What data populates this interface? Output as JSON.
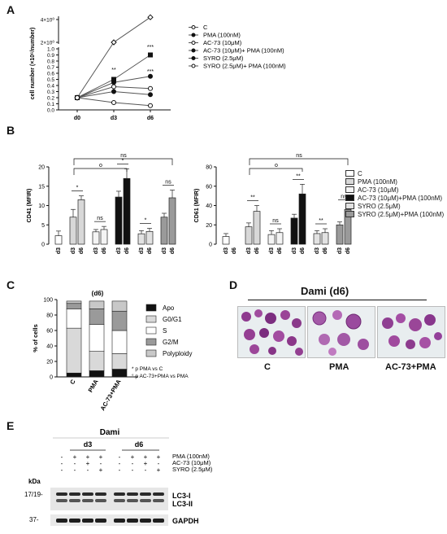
{
  "panels": {
    "A": {
      "letter": "A"
    },
    "B": {
      "letter": "B"
    },
    "C": {
      "letter": "C"
    },
    "D": {
      "letter": "D",
      "title": "Dami (d6)",
      "labels": [
        "C",
        "PMA",
        "AC-73+PMA"
      ]
    },
    "E": {
      "letter": "E"
    }
  },
  "chart_data": [
    {
      "id": "A",
      "type": "line",
      "xlabel": "",
      "ylabel": "cell number (×10⁶/number)",
      "categories": [
        "d0",
        "d3",
        "d6"
      ],
      "yticks": [
        "0.0",
        "0.1",
        "0.2",
        "0.3",
        "0.4",
        "0.5",
        "0.6",
        "0.7",
        "0.8",
        "0.9",
        "1.0",
        "2×10⁰",
        "4×10⁰"
      ],
      "legend": [
        "C",
        "PMA (100nM)",
        "AC-73 (10μM)",
        "AC-73 (10μM)+ PMA (100nM)",
        "SYRO (2.5μM)",
        "SYRO (2.5μM)+ PMA (100nM)"
      ],
      "series": [
        {
          "name": "C",
          "values": [
            0.2,
            0.12,
            0.07
          ]
        },
        {
          "name": "PMA (100nM)",
          "values": [
            0.2,
            0.3,
            0.25
          ]
        },
        {
          "name": "AC-73 (10μM)",
          "values": [
            0.2,
            2.0,
            4.2
          ]
        },
        {
          "name": "AC-73 (10μM)+ PMA (100nM)",
          "values": [
            0.2,
            0.5,
            0.9
          ]
        },
        {
          "name": "SYRO (2.5μM)",
          "values": [
            0.2,
            0.45,
            0.55
          ]
        },
        {
          "name": "SYRO (2.5μM)+ PMA (100nM)",
          "values": [
            0.2,
            0.38,
            0.35
          ]
        }
      ],
      "annotations": [
        "**",
        "***",
        "***"
      ]
    },
    {
      "id": "B1",
      "type": "bar",
      "ylabel": "CD41 (MFIR)",
      "ylim": [
        0,
        20
      ],
      "yticks": [
        "0",
        "5",
        "10",
        "15",
        "20"
      ],
      "groups": [
        {
          "days": [
            "d3"
          ],
          "values": [
            2.2
          ],
          "errors": [
            1.2
          ],
          "color": "#ffffff"
        },
        {
          "days": [
            "d3",
            "d6"
          ],
          "values": [
            7,
            11.5
          ],
          "errors": [
            2,
            1
          ],
          "color": "#d8d8d8"
        },
        {
          "days": [
            "d3",
            "d6"
          ],
          "values": [
            3.2,
            3.8
          ],
          "errors": [
            0.6,
            0.8
          ],
          "color": "#f4f4f4"
        },
        {
          "days": [
            "d3",
            "d6"
          ],
          "values": [
            12.2,
            17
          ],
          "errors": [
            1.5,
            2.5
          ],
          "color": "#111111"
        },
        {
          "days": [
            "d3",
            "d6"
          ],
          "values": [
            2.7,
            3.3
          ],
          "errors": [
            0.8,
            0.8
          ],
          "color": "#e2e2e2"
        },
        {
          "days": [
            "d3",
            "d6"
          ],
          "values": [
            7,
            12
          ],
          "errors": [
            1,
            2
          ],
          "color": "#9a9a9a"
        }
      ],
      "sig": [
        "*",
        "ns",
        "*",
        "*",
        "ns",
        "o"
      ]
    },
    {
      "id": "B2",
      "type": "bar",
      "ylabel": "CD61 (MFIR)",
      "ylim": [
        0,
        80
      ],
      "yticks": [
        "0",
        "20",
        "40",
        "60",
        "80"
      ],
      "groups": [
        {
          "days": [
            "d3",
            "d6"
          ],
          "values": [
            8,
            0
          ],
          "errors": [
            3,
            0
          ],
          "color": "#ffffff"
        },
        {
          "days": [
            "d3",
            "d6"
          ],
          "values": [
            18,
            34
          ],
          "errors": [
            4,
            6
          ],
          "color": "#d8d8d8"
        },
        {
          "days": [
            "d3",
            "d6"
          ],
          "values": [
            10,
            12
          ],
          "errors": [
            4,
            4
          ],
          "color": "#f4f4f4"
        },
        {
          "days": [
            "d3",
            "d6"
          ],
          "values": [
            27,
            52
          ],
          "errors": [
            4,
            10
          ],
          "color": "#111111"
        },
        {
          "days": [
            "d3",
            "d6"
          ],
          "values": [
            11,
            12
          ],
          "errors": [
            3,
            4
          ],
          "color": "#e2e2e2"
        },
        {
          "days": [
            "d3",
            "d6"
          ],
          "values": [
            20,
            36
          ],
          "errors": [
            3,
            5
          ],
          "color": "#9a9a9a"
        }
      ],
      "sig": [
        "**",
        "ns",
        "**",
        "**",
        "ns",
        "o"
      ],
      "legend": [
        "C",
        "PMA (100nM)",
        "AC-73 (10μM)",
        "AC-73 (10μM)+PMA (100nM)",
        "SYRO (2.5μM)",
        "SYRO (2.5μM)+PMA (100nM)"
      ]
    },
    {
      "id": "C",
      "type": "bar",
      "title": "(d6)",
      "ylabel": "% of cells",
      "ylim": [
        0,
        100
      ],
      "yticks": [
        "0",
        "20",
        "40",
        "60",
        "80",
        "100"
      ],
      "categories": [
        "C",
        "PMA",
        "AC-73+PMA"
      ],
      "series": [
        {
          "name": "Apo",
          "values": [
            5,
            8,
            10
          ],
          "color": "#111111"
        },
        {
          "name": "G0/G1",
          "values": [
            58,
            25,
            20
          ],
          "color": "#d9d9d9"
        },
        {
          "name": "S",
          "values": [
            25,
            35,
            30
          ],
          "color": "#ffffff"
        },
        {
          "name": "G2/M",
          "values": [
            7,
            20,
            25
          ],
          "color": "#9a9a9a"
        },
        {
          "name": "Polyploidy",
          "values": [
            3,
            10,
            13
          ],
          "color": "#c8c8c8"
        }
      ],
      "notes": [
        "* p PMA vs C",
        "° p AC-73+PMA vs PMA"
      ]
    }
  ],
  "blot": {
    "title": "Dami",
    "timepoints": [
      "d3",
      "d6"
    ],
    "conditions": [
      {
        "label": "PMA (100nM)",
        "signs": [
          "-",
          "+",
          "+",
          "+",
          "-",
          "+",
          "+",
          "+"
        ]
      },
      {
        "label": "AC-73 (10μM)",
        "signs": [
          "-",
          "-",
          "+",
          "-",
          "-",
          "-",
          "+",
          "-"
        ]
      },
      {
        "label": "SYRO (2.5μM)",
        "signs": [
          "-",
          "-",
          "-",
          "+",
          "-",
          "-",
          "-",
          "+"
        ]
      }
    ],
    "kda_label": "kDa",
    "markers": [
      "17/19-",
      "37-"
    ],
    "bands": [
      "LC3-I",
      "LC3-II",
      "GAPDH"
    ]
  }
}
